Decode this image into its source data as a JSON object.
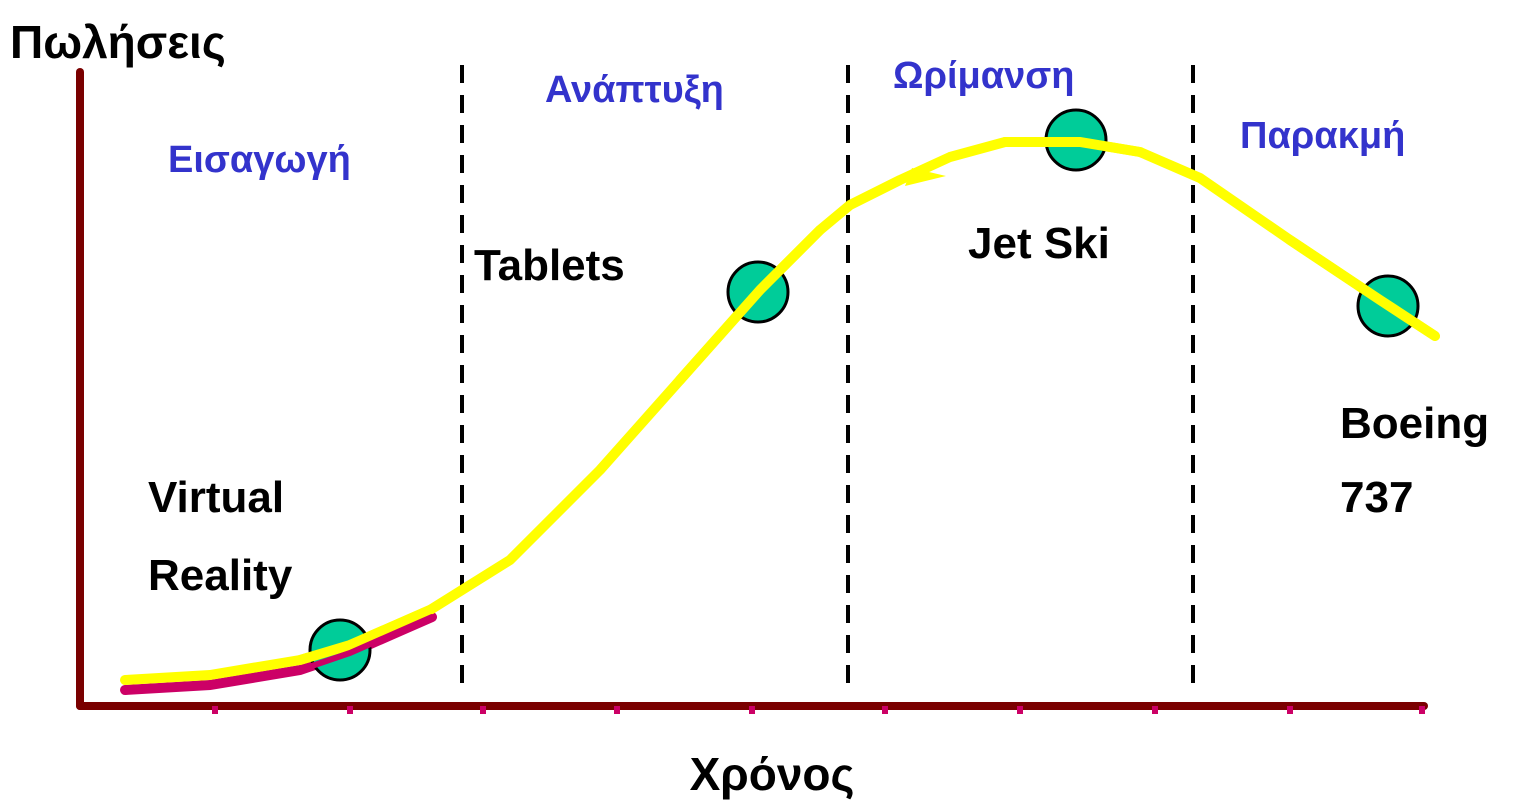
{
  "y_axis": {
    "label": "Πωλήσεις"
  },
  "x_axis": {
    "label": "Χρόνος"
  },
  "stages": [
    "Εισαγωγή",
    "Ανάπτυξη",
    "Ωρίμανση",
    "Παρακμή"
  ],
  "products": [
    {
      "lines": [
        "Virtual",
        "Reality"
      ]
    },
    {
      "lines": [
        "Tablets"
      ]
    },
    {
      "lines": [
        "Jet Ski"
      ]
    },
    {
      "lines": [
        "Boeing",
        "737"
      ]
    }
  ]
}
